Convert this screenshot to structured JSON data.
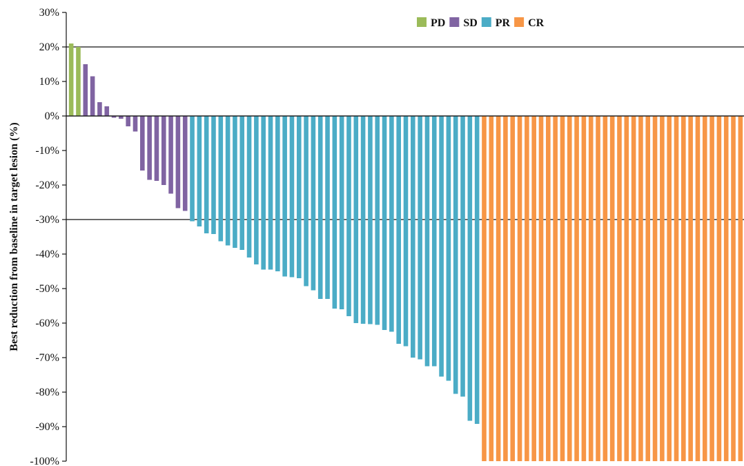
{
  "chart_data": {
    "type": "bar",
    "subtype": "waterfall",
    "ylabel": "Best reduction from baseline in target lesion (%)",
    "xlabel": "",
    "ylim": [
      -100,
      30
    ],
    "yticks": [
      "30%",
      "20%",
      "10%",
      "0%",
      "-10%",
      "-20%",
      "-30%",
      "-40%",
      "-50%",
      "-60%",
      "-70%",
      "-80%",
      "-90%",
      "-100%"
    ],
    "reference_lines": [
      20,
      0,
      -30
    ],
    "legend_position": "top",
    "series": [
      {
        "name": "PD",
        "color": "#9bbb59",
        "values": [
          21,
          20
        ]
      },
      {
        "name": "SD",
        "color": "#8064a2",
        "values": [
          15,
          11.5,
          4,
          2.8,
          -0.5,
          -0.8,
          -3,
          -4.5,
          -15.8,
          -18.5,
          -18.8,
          -20,
          -22.5,
          -26.7,
          -27.5
        ]
      },
      {
        "name": "PR",
        "color": "#4bacc6",
        "values": [
          -30.5,
          -32,
          -34,
          -34.2,
          -36.3,
          -37.5,
          -38.2,
          -38.8,
          -41,
          -43,
          -44.5,
          -44.5,
          -45,
          -46.5,
          -46.7,
          -47,
          -49.3,
          -50.5,
          -53,
          -53,
          -55.8,
          -56,
          -58,
          -60,
          -60.2,
          -60.3,
          -60.5,
          -62,
          -62.5,
          -66,
          -66.7,
          -70,
          -70.5,
          -72.5,
          -72.5,
          -75.5,
          -76.7,
          -80.5,
          -81.3,
          -88.3,
          -89.2
        ]
      },
      {
        "name": "CR",
        "color": "#f79646",
        "values": [
          -100,
          -100,
          -100,
          -100,
          -100,
          -100,
          -100,
          -100,
          -100,
          -100,
          -100,
          -100,
          -100,
          -100,
          -100,
          -100,
          -100,
          -100,
          -100,
          -100,
          -100,
          -100,
          -100,
          -100,
          -100,
          -100,
          -100,
          -100,
          -100,
          -100,
          -100,
          -100,
          -100,
          -100,
          -100,
          -100,
          -100
        ]
      }
    ]
  }
}
